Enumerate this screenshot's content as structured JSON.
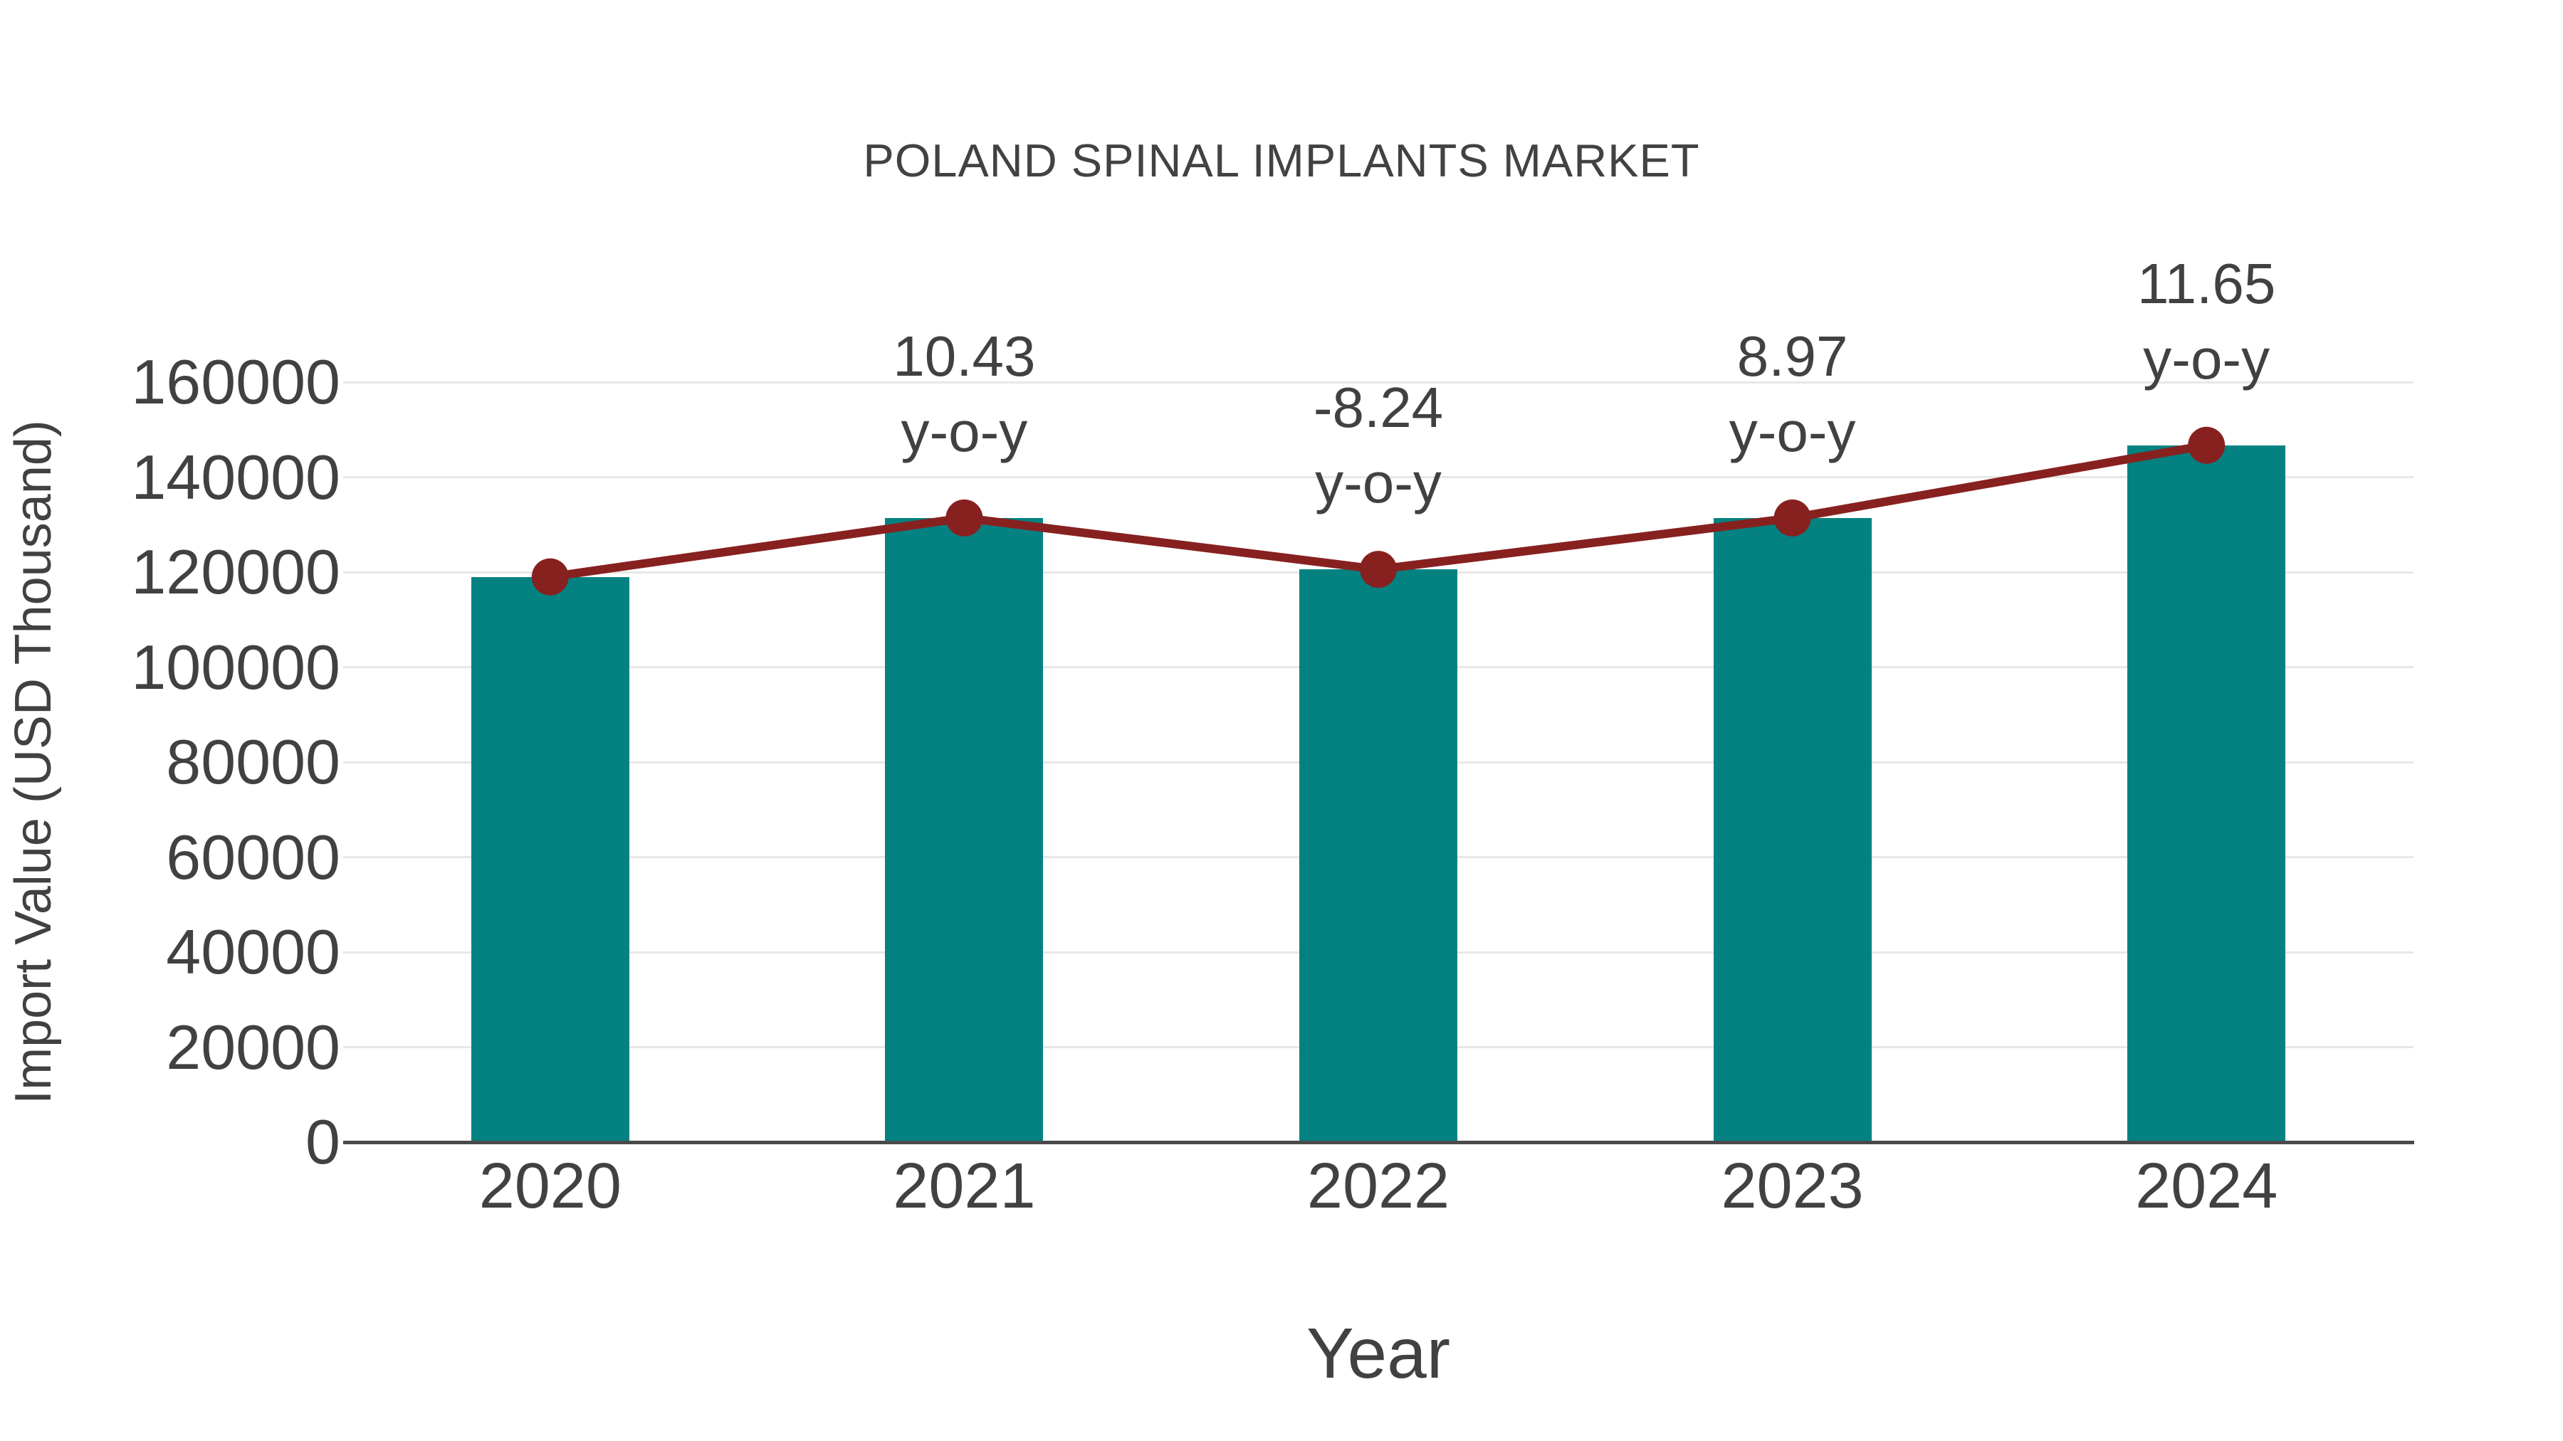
{
  "title": "POLAND SPINAL IMPLANTS MARKET",
  "colors": {
    "bar": "#038281",
    "line": "#872120",
    "text": "#414141",
    "gridline": "#e7e7e7",
    "axis_line": "#4a4a4a",
    "background": "#ffffff"
  },
  "chart_data": {
    "type": "bar",
    "title": "POLAND SPINAL IMPLANTS MARKET",
    "categories": [
      "2020",
      "2021",
      "2022",
      "2023",
      "2024"
    ],
    "series": [
      {
        "name": "Import Value",
        "type": "bar",
        "values": [
          119000,
          131411,
          120583,
          131399,
          146707
        ],
        "color": "#038281"
      },
      {
        "name": "Y-o-Y growth",
        "type": "line",
        "values": [
          119000,
          131411,
          120583,
          131399,
          146707
        ],
        "point_labels": [
          "",
          "10.43",
          "-8.24",
          "8.97",
          "11.65"
        ],
        "label_line2": "y-o-y",
        "color": "#872120"
      }
    ],
    "xlabel": "Year",
    "ylabel": "Import Value (USD Thousand)",
    "ylim": [
      0,
      160000
    ],
    "ytick_step": 20000,
    "yticks": [
      "0",
      "20000",
      "40000",
      "60000",
      "80000",
      "100000",
      "120000",
      "140000",
      "160000"
    ],
    "grid": true,
    "legend": "none"
  }
}
